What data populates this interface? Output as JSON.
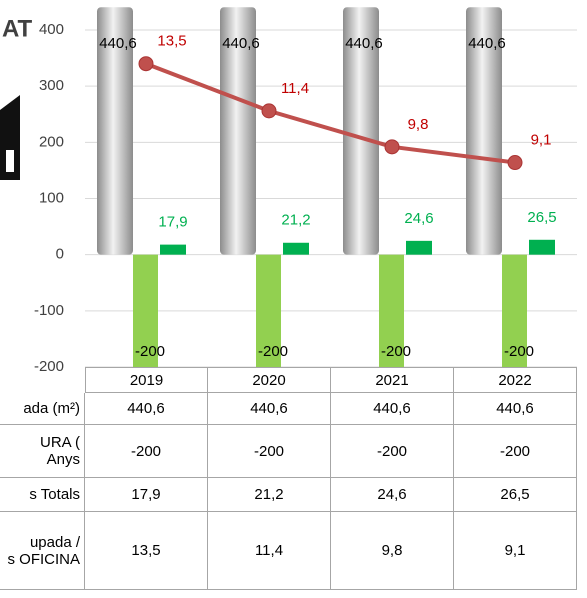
{
  "chart_data": {
    "type": "bar",
    "title": "AT",
    "categories": [
      "2019",
      "2020",
      "2021",
      "2022"
    ],
    "ylim": [
      -200,
      400
    ],
    "yticks": [
      400,
      300,
      200,
      100,
      0,
      -100,
      -200
    ],
    "y2lim": [
      0,
      15
    ],
    "grid": true,
    "series": [
      {
        "name": "ada (m²)",
        "type": "cylinder",
        "color": "#bfbfbf",
        "values": [
          440.6,
          440.6,
          440.6,
          440.6
        ],
        "value_labels": [
          "440,6",
          "440,6",
          "440,6",
          "440,6"
        ]
      },
      {
        "name": "URA (\nAnys",
        "type": "bar",
        "color": "#92d050",
        "values": [
          -200,
          -200,
          -200,
          -200
        ]
      },
      {
        "name": "s Totals",
        "type": "bar",
        "color": "#00b050",
        "values": [
          17.9,
          21.2,
          24.6,
          26.5
        ],
        "value_labels": [
          "17,9",
          "21,2",
          "24,6",
          "26,5"
        ]
      },
      {
        "name": "upada /\ns OFICINA",
        "type": "line",
        "axis": "y2",
        "color": "#c0504d",
        "values": [
          13.5,
          11.4,
          9.8,
          9.1
        ],
        "value_labels": [
          "13,5",
          "11,4",
          "9,8",
          "9,1"
        ]
      }
    ]
  }
}
